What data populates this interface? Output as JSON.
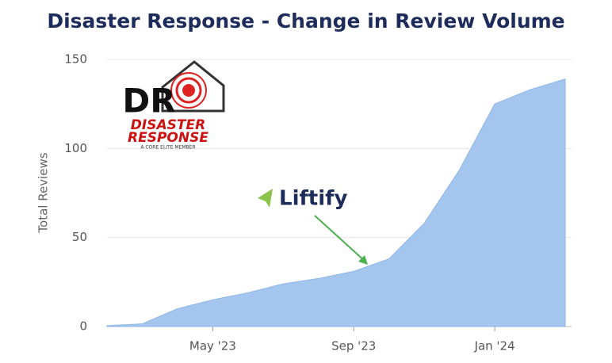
{
  "chart_data": {
    "type": "area",
    "title": "Disaster Response - Change in Review Volume",
    "y_label": "Total Reviews",
    "x": [
      "2023-02",
      "2023-03",
      "2023-04",
      "2023-05",
      "2023-06",
      "2023-07",
      "2023-08",
      "2023-09",
      "2023-10",
      "2023-11",
      "2023-12",
      "2024-01",
      "2024-02",
      "2024-03"
    ],
    "values": [
      0.5,
      1.5,
      10,
      15,
      19,
      24,
      27,
      31,
      38,
      58,
      88,
      125,
      133,
      139
    ],
    "color": "#a4c5ee",
    "xlim": [
      "2023-02",
      "2024-03"
    ],
    "xticks": [
      {
        "value": "2023-05",
        "label": "May '23"
      },
      {
        "value": "2023-09",
        "label": "Sep '23"
      },
      {
        "value": "2024-01",
        "label": "Jan '24"
      }
    ],
    "ylim": [
      0,
      150
    ],
    "yticks": [
      0,
      50,
      100,
      150
    ],
    "grid": true,
    "annotations": [
      "Liftify"
    ],
    "logo": {
      "initials": "DR",
      "line1": "DISASTER",
      "line2": "RESPONSE",
      "tagline": "A CORE ELITE MEMBER"
    }
  }
}
